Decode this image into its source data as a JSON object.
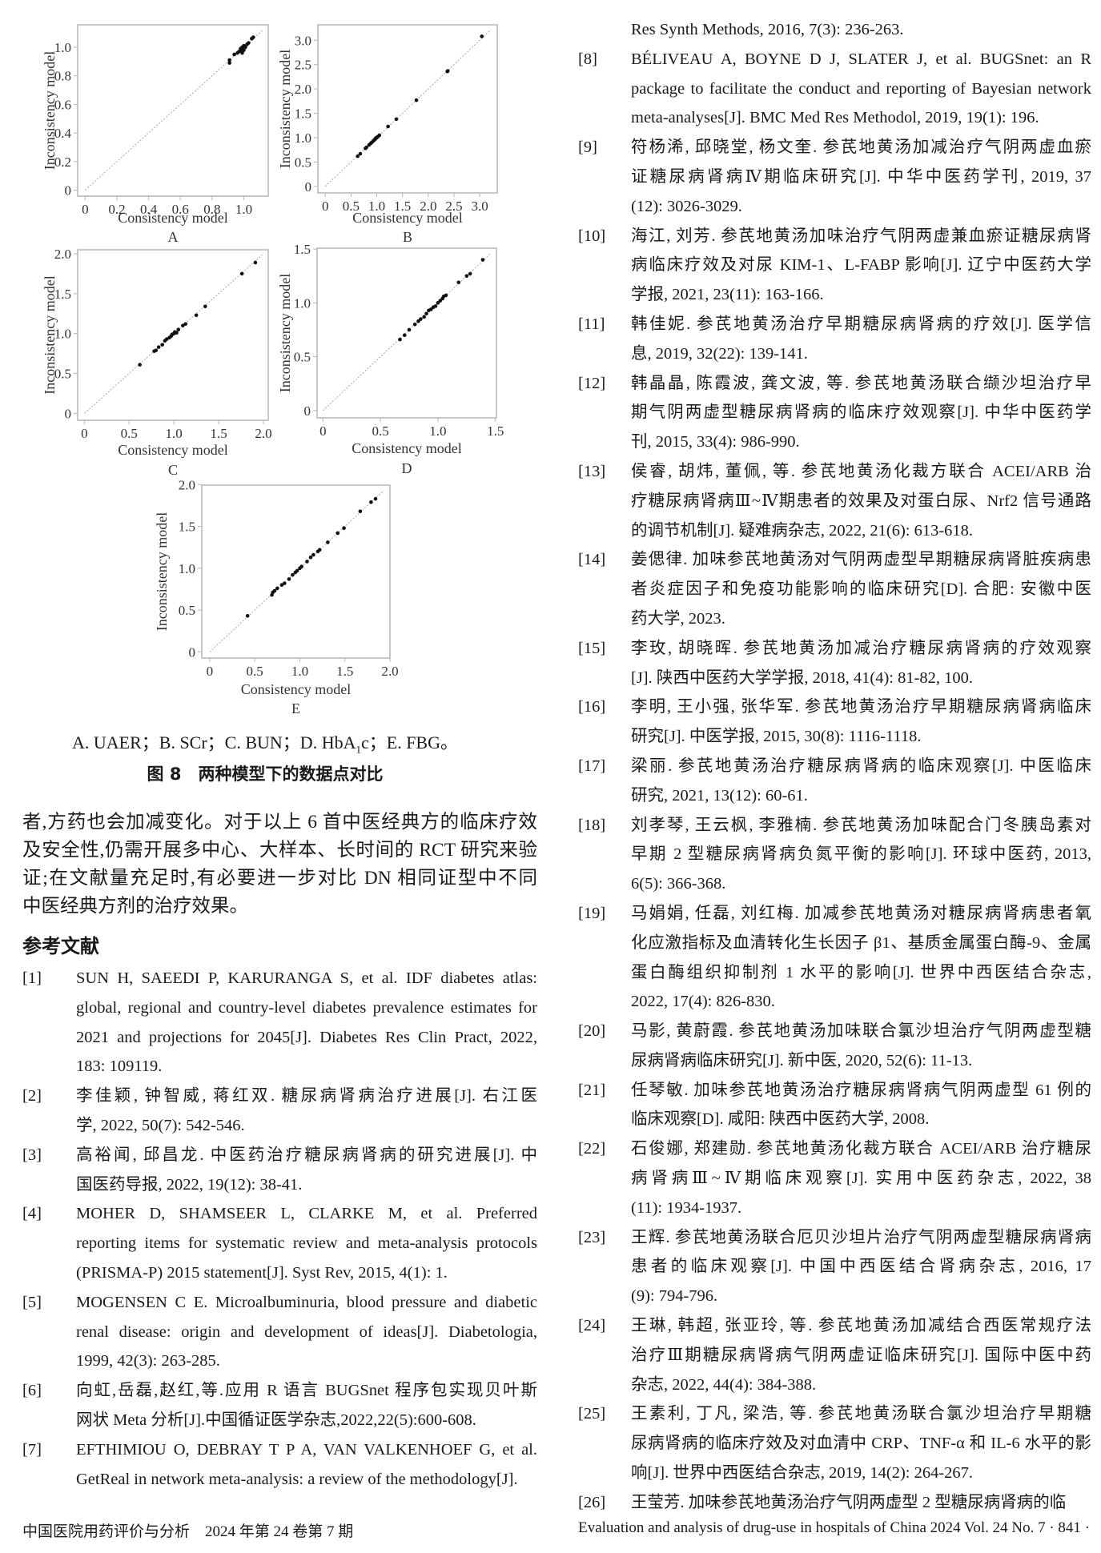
{
  "figure": {
    "caption_legend": "A. UAER；B. SCr；C. BUN；D. HbA1c；E. FBG。",
    "caption_legend_parts": [
      "A. UAER；B. SCr；C. BUN；D. HbA",
      "1",
      "c；E. FBG。"
    ],
    "title": "图 8　两种模型下的数据点对比"
  },
  "chart_data": [
    {
      "type": "scatter",
      "panel": "A",
      "xlabel": "Consistency model",
      "ylabel": "Inconsistency model",
      "xlim": [
        -0.047,
        1.154
      ],
      "ylim": [
        -0.042,
        1.157
      ],
      "xticks": [
        "0",
        "0.2",
        "0.4",
        "0.6",
        "0.8",
        "1.0"
      ],
      "yticks": [
        "0",
        "0.2",
        "0.4",
        "0.6",
        "0.8",
        "1.0"
      ],
      "reference_line": "y = x (dotted)",
      "grid": false,
      "points": [
        [
          0.91,
          0.89
        ],
        [
          0.91,
          0.91
        ],
        [
          0.94,
          0.95
        ],
        [
          0.96,
          0.96
        ],
        [
          0.97,
          0.97
        ],
        [
          0.98,
          0.99
        ],
        [
          0.99,
          1.0
        ],
        [
          1.0,
          0.98
        ],
        [
          1.0,
          1.01
        ],
        [
          1.01,
          1.0
        ],
        [
          1.02,
          1.02
        ],
        [
          1.03,
          1.03
        ],
        [
          0.985,
          0.975
        ],
        [
          1.05,
          1.06
        ],
        [
          1.06,
          1.07
        ],
        [
          0.99,
          0.96
        ]
      ]
    },
    {
      "type": "scatter",
      "panel": "B",
      "xlabel": "Consistency model",
      "ylabel": "Inconsistency model",
      "xlim": [
        -0.143,
        3.34
      ],
      "ylim": [
        -0.134,
        3.317
      ],
      "xticks": [
        "0",
        "0.5",
        "1.0",
        "1.5",
        "2.0",
        "2.5",
        "3.0"
      ],
      "yticks": [
        "0",
        "0.5",
        "1.0",
        "1.5",
        "2.0",
        "2.5",
        "3.0"
      ],
      "reference_line": "y = x (dotted)",
      "grid": false,
      "points": [
        [
          0.63,
          0.62
        ],
        [
          0.68,
          0.67
        ],
        [
          0.78,
          0.78
        ],
        [
          0.8,
          0.8
        ],
        [
          0.85,
          0.85
        ],
        [
          0.88,
          0.88
        ],
        [
          0.9,
          0.9
        ],
        [
          0.93,
          0.93
        ],
        [
          0.95,
          0.95
        ],
        [
          0.97,
          0.97
        ],
        [
          0.98,
          0.99
        ],
        [
          1.0,
          1.0
        ],
        [
          1.02,
          1.02
        ],
        [
          1.05,
          1.05
        ],
        [
          1.22,
          1.23
        ],
        [
          1.38,
          1.38
        ],
        [
          1.77,
          1.77
        ],
        [
          2.37,
          2.36
        ],
        [
          2.38,
          2.37
        ],
        [
          3.04,
          3.08
        ]
      ]
    },
    {
      "type": "scatter",
      "panel": "C",
      "xlabel": "Consistency model",
      "ylabel": "Inconsistency model",
      "xlim": [
        -0.075,
        2.054
      ],
      "ylim": [
        -0.086,
        2.05
      ],
      "xticks": [
        "0",
        "0.5",
        "1.0",
        "1.5",
        "2.0"
      ],
      "yticks": [
        "0",
        "0.5",
        "1.0",
        "1.5",
        "2.0"
      ],
      "reference_line": "y = x (dotted)",
      "grid": false,
      "points": [
        [
          0.62,
          0.61
        ],
        [
          0.78,
          0.78
        ],
        [
          0.8,
          0.79
        ],
        [
          0.83,
          0.83
        ],
        [
          0.87,
          0.86
        ],
        [
          0.9,
          0.91
        ],
        [
          0.92,
          0.93
        ],
        [
          0.95,
          0.95
        ],
        [
          0.97,
          0.97
        ],
        [
          0.98,
          0.99
        ],
        [
          1.0,
          1.0
        ],
        [
          1.01,
          1.02
        ],
        [
          1.03,
          1.01
        ],
        [
          1.05,
          1.05
        ],
        [
          1.1,
          1.1
        ],
        [
          1.13,
          1.12
        ],
        [
          1.25,
          1.23
        ],
        [
          1.35,
          1.34
        ],
        [
          1.76,
          1.75
        ],
        [
          1.91,
          1.89
        ]
      ]
    },
    {
      "type": "scatter",
      "panel": "D",
      "xlabel": "Consistency model",
      "ylabel": "Inconsistency model",
      "xlim": [
        -0.051,
        1.509
      ],
      "ylim": [
        -0.068,
        1.508
      ],
      "xticks": [
        "0",
        "0.5",
        "1.0",
        "1.5"
      ],
      "yticks": [
        "0",
        "0.5",
        "1.0",
        "1.5"
      ],
      "reference_line": "y = x (dotted)",
      "grid": false,
      "points": [
        [
          0.67,
          0.66
        ],
        [
          0.71,
          0.7
        ],
        [
          0.75,
          0.75
        ],
        [
          0.8,
          0.8
        ],
        [
          0.83,
          0.83
        ],
        [
          0.85,
          0.85
        ],
        [
          0.88,
          0.87
        ],
        [
          0.9,
          0.9
        ],
        [
          0.92,
          0.93
        ],
        [
          0.94,
          0.94
        ],
        [
          0.96,
          0.96
        ],
        [
          0.98,
          0.97
        ],
        [
          1.0,
          1.0
        ],
        [
          1.02,
          1.02
        ],
        [
          1.04,
          1.04
        ],
        [
          1.05,
          1.06
        ],
        [
          1.07,
          1.07
        ],
        [
          1.18,
          1.19
        ],
        [
          1.25,
          1.25
        ],
        [
          1.28,
          1.27
        ],
        [
          1.39,
          1.4
        ]
      ]
    },
    {
      "type": "scatter",
      "panel": "E",
      "xlabel": "Consistency model",
      "ylabel": "Inconsistency model",
      "xlim": [
        -0.088,
        2.0
      ],
      "ylim": [
        -0.074,
        1.994
      ],
      "xticks": [
        "0",
        "0.5",
        "1.0",
        "1.5",
        "2.0"
      ],
      "yticks": [
        "0",
        "0.5",
        "1.0",
        "1.5",
        "2.0"
      ],
      "reference_line": "y = x (dotted)",
      "grid": false,
      "points": [
        [
          0.42,
          0.43
        ],
        [
          0.69,
          0.68
        ],
        [
          0.7,
          0.71
        ],
        [
          0.72,
          0.73
        ],
        [
          0.75,
          0.76
        ],
        [
          0.8,
          0.8
        ],
        [
          0.83,
          0.82
        ],
        [
          0.88,
          0.87
        ],
        [
          0.92,
          0.92
        ],
        [
          0.95,
          0.95
        ],
        [
          0.97,
          0.97
        ],
        [
          1.0,
          1.0
        ],
        [
          1.02,
          1.02
        ],
        [
          1.08,
          1.08
        ],
        [
          1.12,
          1.13
        ],
        [
          1.15,
          1.16
        ],
        [
          1.2,
          1.2
        ],
        [
          1.22,
          1.22
        ],
        [
          1.31,
          1.31
        ],
        [
          1.42,
          1.42
        ],
        [
          1.49,
          1.48
        ],
        [
          1.67,
          1.68
        ],
        [
          1.79,
          1.79
        ],
        [
          1.84,
          1.83
        ]
      ]
    }
  ],
  "body": {
    "lines": [
      "者,方药也会加减变化。对于以上 6 首中医经典方的临床疗效",
      "及安全性,仍需开展多中心、大样本、长时间的 RCT 研究来验",
      "证;在文献量充足时,有必要进一步对比 DN 相同证型中不同",
      "中医经典方剂的治疗效果。"
    ],
    "references_heading": "参考文献"
  },
  "left_column": {
    "references": [
      {
        "num": "[1]",
        "lines": [
          "SUN H, SAEEDI P, KARURANGA S, et al. IDF diabetes atlas:",
          "global, regional and country-level diabetes prevalence estimates for",
          "2021 and projections for 2045[J]. Diabetes Res Clin Pract, 2022,",
          "183: 109119."
        ]
      },
      {
        "num": "[2]",
        "lines": [
          "李佳颖, 钟智威, 蒋红双. 糖尿病肾病治疗进展[J]. 右江医",
          "学, 2022, 50(7): 542-546."
        ]
      },
      {
        "num": "[3]",
        "lines": [
          "高裕闻, 邱昌龙. 中医药治疗糖尿病肾病的研究进展[J]. 中",
          "国医药导报, 2022, 19(12): 38-41."
        ]
      },
      {
        "num": "[4]",
        "lines": [
          "MOHER D, SHAMSEER L, CLARKE M, et al. Preferred",
          "reporting items for systematic review and meta-analysis protocols",
          "(PRISMA-P) 2015 statement[J]. Syst Rev, 2015, 4(1): 1."
        ]
      },
      {
        "num": "[5]",
        "lines": [
          "MOGENSEN C E. Microalbuminuria, blood pressure and diabetic",
          "renal disease: origin and development of ideas[J]. Diabetologia,",
          "1999, 42(3): 263-285."
        ]
      },
      {
        "num": "[6]",
        "lines": [
          "向虹,岳磊,赵红,等.应用 R 语言 BUGSnet 程序包实现贝叶斯",
          "网状 Meta 分析[J].中国循证医学杂志,2022,22(5):600-608."
        ]
      },
      {
        "num": "[7]",
        "lines": [
          "EFTHIMIOU O, DEBRAY T P A, VAN VALKENHOEF G, et al.",
          "GetReal in network meta-analysis: a review of the methodology[J]."
        ]
      }
    ]
  },
  "right_column": {
    "references": [
      {
        "num": "",
        "lines": [
          "Res Synth Methods, 2016, 7(3): 236-263."
        ]
      },
      {
        "num": "[8]",
        "lines": [
          "BÉLIVEAU A, BOYNE D J, SLATER J, et al. BUGSnet: an R",
          "package to facilitate the conduct and reporting of Bayesian network",
          "meta-analyses[J]. BMC Med Res Methodol, 2019, 19(1): 196."
        ]
      },
      {
        "num": "[9]",
        "lines": [
          "符杨浠, 邱晓堂, 杨文奎. 参芪地黄汤加减治疗气阴两虚血瘀",
          "证糖尿病肾病Ⅳ期临床研究[J]. 中华中医药学刊, 2019, 37",
          "(12): 3026-3029."
        ]
      },
      {
        "num": "[10]",
        "lines": [
          "海江, 刘芳. 参芪地黄汤加味治疗气阴两虚兼血瘀证糖尿病肾",
          "病临床疗效及对尿 KIM-1、L-FABP 影响[J]. 辽宁中医药大学",
          "学报, 2021, 23(11): 163-166."
        ]
      },
      {
        "num": "[11]",
        "lines": [
          "韩佳妮. 参芪地黄汤治疗早期糖尿病肾病的疗效[J]. 医学信",
          "息, 2019, 32(22): 139-141."
        ]
      },
      {
        "num": "[12]",
        "lines": [
          "韩晶晶, 陈霞波, 龚文波, 等. 参芪地黄汤联合缬沙坦治疗早",
          "期气阴两虚型糖尿病肾病的临床疗效观察[J]. 中华中医药学",
          "刊, 2015, 33(4): 986-990."
        ]
      },
      {
        "num": "[13]",
        "lines": [
          "侯睿, 胡炜, 董佩, 等. 参芪地黄汤化裁方联合 ACEI/ARB 治",
          "疗糖尿病肾病Ⅲ~Ⅳ期患者的效果及对蛋白尿、Nrf2 信号通路",
          "的调节机制[J]. 疑难病杂志, 2022, 21(6): 613-618."
        ]
      },
      {
        "num": "[14]",
        "lines": [
          "姜偲律. 加味参芪地黄汤对气阴两虚型早期糖尿病肾脏疾病患",
          "者炎症因子和免疫功能影响的临床研究[D]. 合肥: 安徽中医",
          "药大学, 2023."
        ]
      },
      {
        "num": "[15]",
        "lines": [
          "李玫, 胡晓晖. 参芪地黄汤加减治疗糖尿病肾病的疗效观察",
          "[J]. 陕西中医药大学学报, 2018, 41(4): 81-82, 100."
        ]
      },
      {
        "num": "[16]",
        "lines": [
          "李明, 王小强, 张华军. 参芪地黄汤治疗早期糖尿病肾病临床",
          "研究[J]. 中医学报, 2015, 30(8): 1116-1118."
        ]
      },
      {
        "num": "[17]",
        "lines": [
          "梁丽. 参芪地黄汤治疗糖尿病肾病的临床观察[J]. 中医临床",
          "研究, 2021, 13(12): 60-61."
        ]
      },
      {
        "num": "[18]",
        "lines": [
          "刘孝琴, 王云枫, 李雅楠. 参芪地黄汤加味配合门冬胰岛素对",
          "早期 2 型糖尿病肾病负氮平衡的影响[J]. 环球中医药, 2013,",
          "6(5): 366-368."
        ]
      },
      {
        "num": "[19]",
        "lines": [
          "马娟娟, 任磊, 刘红梅. 加减参芪地黄汤对糖尿病肾病患者氧",
          "化应激指标及血清转化生长因子 β1、基质金属蛋白酶-9、金属",
          "蛋白酶组织抑制剂 1 水平的影响[J]. 世界中西医结合杂志,",
          "2022, 17(4): 826-830."
        ]
      },
      {
        "num": "[20]",
        "lines": [
          "马影, 黄蔚霞. 参芪地黄汤加味联合氯沙坦治疗气阴两虚型糖",
          "尿病肾病临床研究[J]. 新中医, 2020, 52(6): 11-13."
        ]
      },
      {
        "num": "[21]",
        "lines": [
          "任琴敏. 加味参芪地黄汤治疗糖尿病肾病气阴两虚型 61 例的",
          "临床观察[D]. 咸阳: 陕西中医药大学, 2008."
        ]
      },
      {
        "num": "[22]",
        "lines": [
          "石俊娜, 郑建勋. 参芪地黄汤化裁方联合 ACEI/ARB 治疗糖尿",
          "病肾病Ⅲ~Ⅳ期临床观察[J]. 实用中医药杂志, 2022, 38",
          "(11): 1934-1937."
        ]
      },
      {
        "num": "[23]",
        "lines": [
          "王辉. 参芪地黄汤联合厄贝沙坦片治疗气阴两虚型糖尿病肾病",
          "患者的临床观察[J]. 中国中西医结合肾病杂志, 2016, 17",
          "(9): 794-796."
        ]
      },
      {
        "num": "[24]",
        "lines": [
          "王琳, 韩超, 张亚玲, 等. 参芪地黄汤加减结合西医常规疗法",
          "治疗Ⅲ期糖尿病肾病气阴两虚证临床研究[J]. 国际中医中药",
          "杂志, 2022, 44(4): 384-388."
        ]
      },
      {
        "num": "[25]",
        "lines": [
          "王素利, 丁凡, 梁浩, 等. 参芪地黄汤联合氯沙坦治疗早期糖",
          "尿病肾病的临床疗效及对血清中 CRP、TNF-α 和 IL-6 水平的影",
          "响[J]. 世界中西医结合杂志, 2019, 14(2): 264-267."
        ]
      },
      {
        "num": "[26]",
        "lines": [
          "王莹芳. 加味参芪地黄汤治疗气阴两虚型 2 型糖尿病肾病的临"
        ]
      }
    ]
  },
  "footer": {
    "left": "中国医院用药评价与分析　2024 年第 24 卷第 7 期",
    "right": "Evaluation and analysis of drug-use in hospitals of China 2024 Vol. 24 No. 7 · 841 ·"
  }
}
